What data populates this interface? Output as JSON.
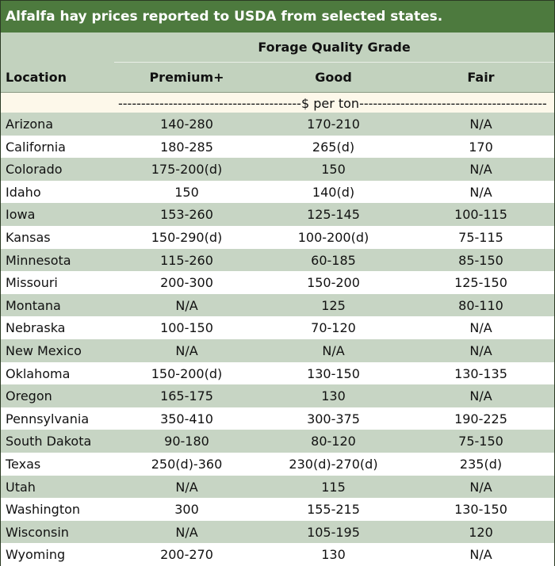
{
  "title": "Alfalfa hay prices reported to USDA from selected states.",
  "header": {
    "group_label": "Forage Quality Grade",
    "location": "Location",
    "premium": "Premium+",
    "good": "Good",
    "fair": "Fair"
  },
  "units_label": "----------------------------------------$ per ton-----------------------------------------",
  "colors": {
    "title_bg": "#4d7a3e",
    "header_bg": "#c2d2be",
    "stripe": "#c7d5c4",
    "units_bg": "#fdf8ea"
  },
  "rows": [
    {
      "location": "Arizona",
      "premium": "140-280",
      "good": "170-210",
      "fair": "N/A"
    },
    {
      "location": "California",
      "premium": "180-285",
      "good": "265(d)",
      "fair": "170"
    },
    {
      "location": "Colorado",
      "premium": "175-200(d)",
      "good": "150",
      "fair": "N/A"
    },
    {
      "location": "Idaho",
      "premium": "150",
      "good": "140(d)",
      "fair": "N/A"
    },
    {
      "location": "Iowa",
      "premium": "153-260",
      "good": "125-145",
      "fair": "100-115"
    },
    {
      "location": "Kansas",
      "premium": "150-290(d)",
      "good": "100-200(d)",
      "fair": "75-115"
    },
    {
      "location": "Minnesota",
      "premium": "115-260",
      "good": "60-185",
      "fair": "85-150"
    },
    {
      "location": "Missouri",
      "premium": "200-300",
      "good": "150-200",
      "fair": "125-150"
    },
    {
      "location": "Montana",
      "premium": "N/A",
      "good": "125",
      "fair": "80-110"
    },
    {
      "location": "Nebraska",
      "premium": "100-150",
      "good": "70-120",
      "fair": "N/A"
    },
    {
      "location": "New Mexico",
      "premium": "N/A",
      "good": "N/A",
      "fair": "N/A"
    },
    {
      "location": "Oklahoma",
      "premium": "150-200(d)",
      "good": "130-150",
      "fair": "130-135"
    },
    {
      "location": "Oregon",
      "premium": "165-175",
      "good": "130",
      "fair": "N/A"
    },
    {
      "location": "Pennsylvania",
      "premium": "350-410",
      "good": "300-375",
      "fair": "190-225"
    },
    {
      "location": "South Dakota",
      "premium": "90-180",
      "good": "80-120",
      "fair": "75-150"
    },
    {
      "location": "Texas",
      "premium": "250(d)-360",
      "good": "230(d)-270(d)",
      "fair": "235(d)"
    },
    {
      "location": "Utah",
      "premium": "N/A",
      "good": "115",
      "fair": "N/A"
    },
    {
      "location": "Washington",
      "premium": "300",
      "good": "155-215",
      "fair": "130-150"
    },
    {
      "location": "Wisconsin",
      "premium": "N/A",
      "good": "105-195",
      "fair": "120"
    },
    {
      "location": "Wyoming",
      "premium": "200-270",
      "good": "130",
      "fair": "N/A"
    }
  ]
}
